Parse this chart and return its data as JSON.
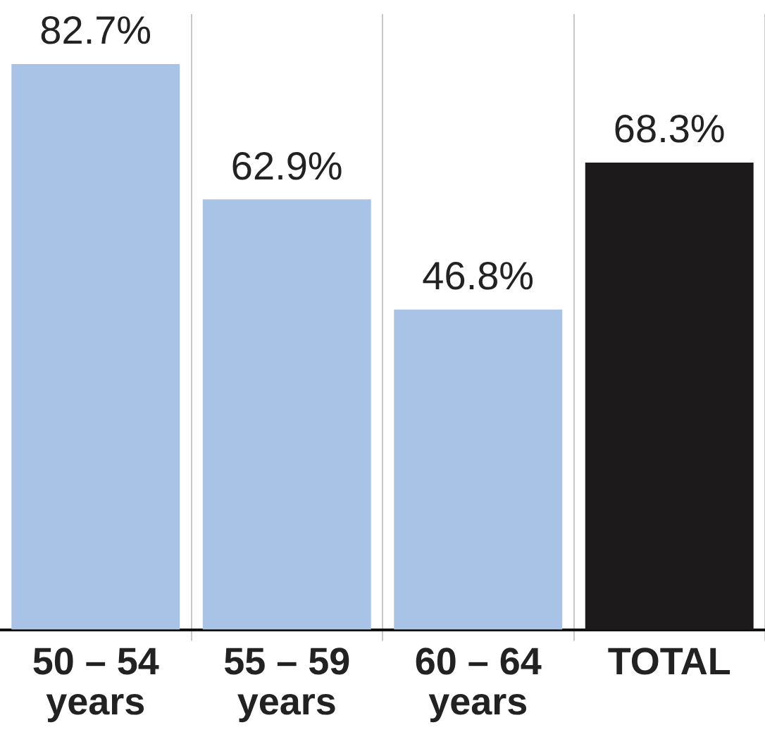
{
  "chart_data": {
    "type": "bar",
    "categories": [
      "50 – 54\nyears",
      "55 – 59\nyears",
      "60 – 64\nyears",
      "TOTAL"
    ],
    "values": [
      82.7,
      62.9,
      46.8,
      68.3
    ],
    "colors": [
      "#a8c3e6",
      "#a8c3e6",
      "#a8c3e6",
      "#1c1a1a"
    ],
    "value_labels": [
      "82.7%",
      "62.9%",
      "46.8%",
      "68.3%"
    ],
    "grid": "x",
    "legend": false
  }
}
